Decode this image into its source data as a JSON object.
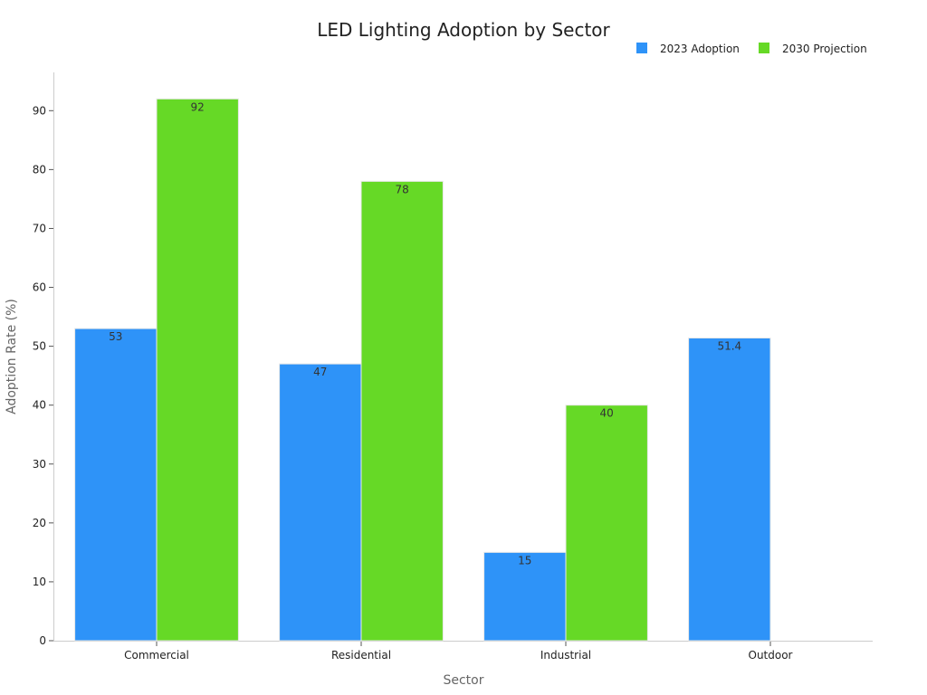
{
  "chart_data": {
    "type": "bar",
    "title": "LED Lighting Adoption by Sector",
    "xlabel": "Sector",
    "ylabel": "Adoption Rate (%)",
    "categories": [
      "Commercial",
      "Residential",
      "Industrial",
      "Outdoor"
    ],
    "series": [
      {
        "name": "2023 Adoption",
        "color": "#2e93f8",
        "values": [
          53,
          47,
          15,
          51.4
        ],
        "labels": [
          "53",
          "47",
          "15",
          "51.4"
        ]
      },
      {
        "name": "2030 Projection",
        "color": "#66d926",
        "values": [
          92,
          78,
          40,
          null
        ],
        "labels": [
          "92",
          "78",
          "40",
          ""
        ]
      }
    ],
    "ylim": [
      0,
      96.5
    ],
    "yticks": [
      0,
      10,
      20,
      30,
      40,
      50,
      60,
      70,
      80,
      90
    ],
    "grid": false,
    "legend": "top-right"
  }
}
